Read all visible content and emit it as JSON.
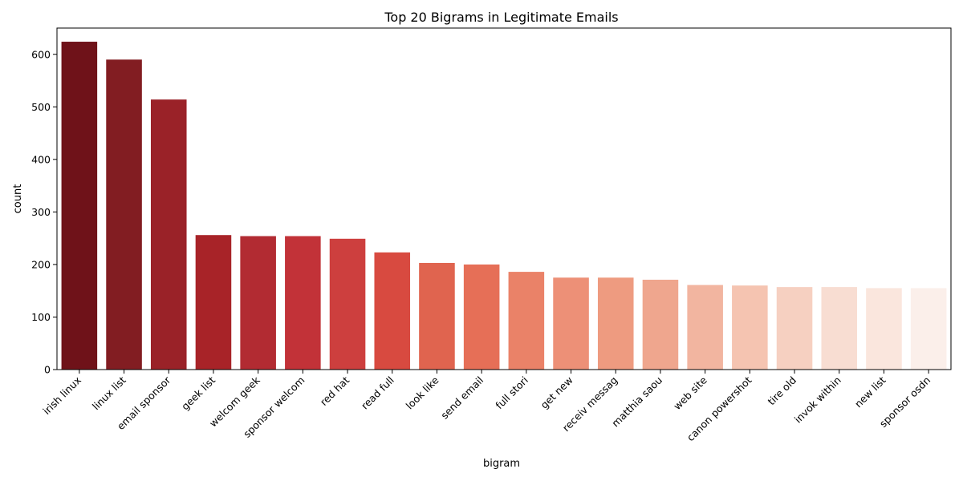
{
  "chart_data": {
    "type": "bar",
    "title": "Top 20 Bigrams in Legitimate Emails",
    "xlabel": "bigram",
    "ylabel": "count",
    "categories": [
      "irish linux",
      "linux list",
      "email sponsor",
      "geek list",
      "welcom geek",
      "sponsor welcom",
      "red hat",
      "read full",
      "look like",
      "send email",
      "full stori",
      "get new",
      "receiv messag",
      "matthia saou",
      "web site",
      "canon powershot",
      "tire old",
      "invok within",
      "new list",
      "sponsor osdn"
    ],
    "values": [
      624,
      590,
      514,
      256,
      254,
      254,
      249,
      223,
      203,
      200,
      186,
      175,
      175,
      171,
      161,
      160,
      157,
      157,
      155,
      155
    ],
    "colors": [
      "#6f1219",
      "#821d22",
      "#9a2228",
      "#a82328",
      "#b22b32",
      "#c23238",
      "#cd3f3e",
      "#d84a40",
      "#e0644f",
      "#e66f57",
      "#ea8268",
      "#ed9077",
      "#ee9b80",
      "#efa68e",
      "#f2b5a0",
      "#f5c4b1",
      "#f6d0c1",
      "#f8ddd2",
      "#fae6dd",
      "#fbefea"
    ],
    "ylim": [
      0,
      650
    ],
    "yticks": [
      0,
      100,
      200,
      300,
      400,
      500,
      600
    ],
    "grid": false,
    "legend": "none"
  }
}
